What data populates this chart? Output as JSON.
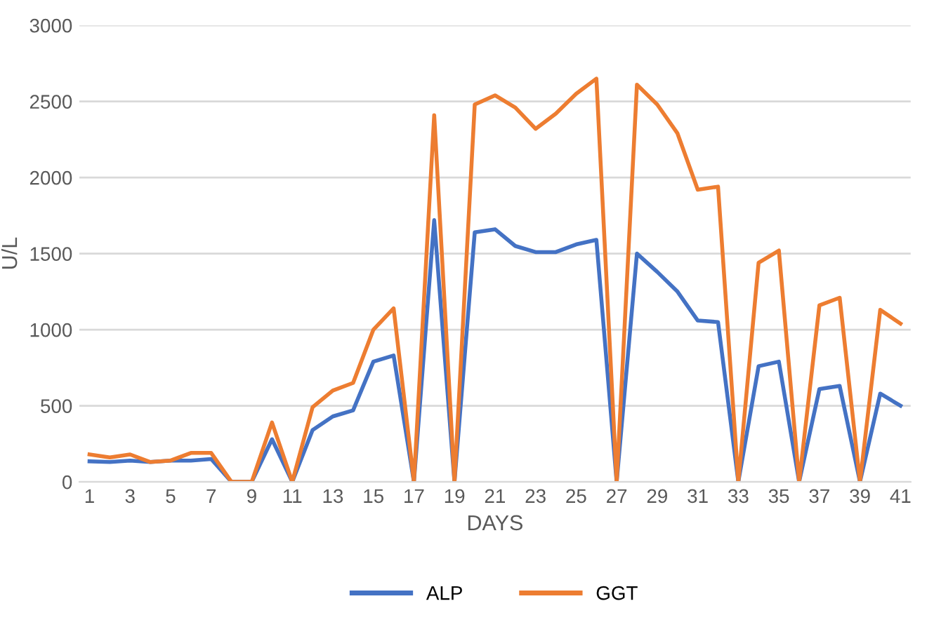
{
  "chart_data": {
    "type": "line",
    "xlabel": "DAYS",
    "ylabel": "U/L",
    "categories": [
      "1",
      null,
      "3",
      null,
      "5",
      null,
      "7",
      null,
      "9",
      null,
      "11",
      null,
      "13",
      null,
      "15",
      null,
      "17",
      null,
      "19",
      null,
      "21",
      null,
      "23",
      null,
      "25",
      null,
      "27",
      null,
      "29",
      null,
      "31",
      null,
      "33",
      null,
      "35",
      null,
      "37",
      null,
      "39",
      null,
      "41"
    ],
    "series": [
      {
        "name": "ALP",
        "color": "#4472c4",
        "values": [
          135,
          130,
          140,
          130,
          140,
          140,
          150,
          0,
          0,
          280,
          0,
          340,
          430,
          470,
          790,
          830,
          0,
          1720,
          0,
          1640,
          1660,
          1550,
          1510,
          1510,
          1560,
          1590,
          0,
          1500,
          1380,
          1250,
          1060,
          1050,
          0,
          760,
          790,
          0,
          610,
          630,
          0,
          580,
          500
        ]
      },
      {
        "name": "GGT",
        "color": "#ed7d31",
        "values": [
          180,
          160,
          180,
          130,
          140,
          190,
          190,
          0,
          0,
          390,
          0,
          490,
          600,
          650,
          1000,
          1140,
          0,
          2410,
          0,
          2480,
          2540,
          2460,
          2320,
          2420,
          2550,
          2650,
          0,
          2610,
          2480,
          2290,
          1920,
          1940,
          0,
          1440,
          1520,
          0,
          1160,
          1210,
          0,
          1130,
          1040
        ]
      }
    ],
    "ylim": [
      0,
      3000
    ],
    "yticks": [
      0,
      500,
      1000,
      1500,
      2000,
      2500,
      3000
    ],
    "grid": "y",
    "legend": "bottom",
    "marker": "none",
    "line_style": "solid"
  }
}
